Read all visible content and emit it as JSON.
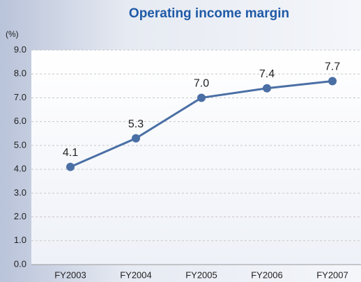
{
  "chart_data": {
    "type": "line",
    "title": "Operating income margin",
    "ylabel": "(%)",
    "categories": [
      "FY2003",
      "FY2004",
      "FY2005",
      "FY2006",
      "FY2007"
    ],
    "series": [
      {
        "name": "Operating income margin",
        "color": "#4a6fa5",
        "values": [
          4.1,
          5.3,
          7.0,
          7.4,
          7.7
        ],
        "value_labels": [
          "4.1",
          "5.3",
          "7.0",
          "7.4",
          "7.7"
        ]
      }
    ],
    "ylim": [
      0,
      9
    ],
    "yticks": [
      {
        "value": 0,
        "label": "0.0"
      },
      {
        "value": 1,
        "label": "1.0"
      },
      {
        "value": 2,
        "label": "2.0"
      },
      {
        "value": 3,
        "label": "3.0"
      },
      {
        "value": 4,
        "label": "4.0"
      },
      {
        "value": 5,
        "label": "5.0"
      },
      {
        "value": 6,
        "label": "6.0"
      },
      {
        "value": 7,
        "label": "7.0"
      },
      {
        "value": 8,
        "label": "8.0"
      },
      {
        "value": 9,
        "label": "9.0"
      }
    ],
    "grid": true
  }
}
